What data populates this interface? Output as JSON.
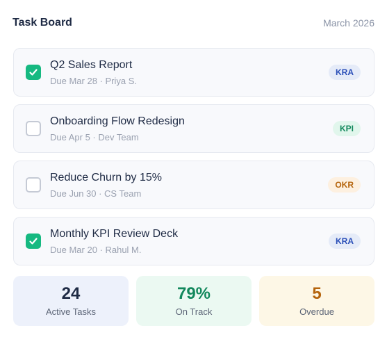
{
  "header": {
    "title": "Task Board",
    "date": "March 2026"
  },
  "tasks": [
    {
      "name": "Q2 Sales Report",
      "meta": "Due Mar 28 · Priya S.",
      "checked": true,
      "badge": "KRA"
    },
    {
      "name": "Onboarding Flow Redesign",
      "meta": "Due Apr 5 · Dev Team",
      "checked": false,
      "badge": "KPI"
    },
    {
      "name": "Reduce Churn by 15%",
      "meta": "Due Jun 30 · CS Team",
      "checked": false,
      "badge": "OKR"
    },
    {
      "name": "Monthly KPI Review Deck",
      "meta": "Due Mar 20 · Rahul M.",
      "checked": true,
      "badge": "KRA"
    }
  ],
  "stats": {
    "active": {
      "value": "24",
      "label": "Active Tasks"
    },
    "on_track": {
      "value": "79%",
      "label": "On Track"
    },
    "overdue": {
      "value": "5",
      "label": "Overdue"
    }
  },
  "colors": {
    "check": "#16b981",
    "kra": "#2b4fb8",
    "kpi": "#12885c",
    "okr": "#b5640c"
  },
  "icons": {
    "check": "check-icon"
  }
}
